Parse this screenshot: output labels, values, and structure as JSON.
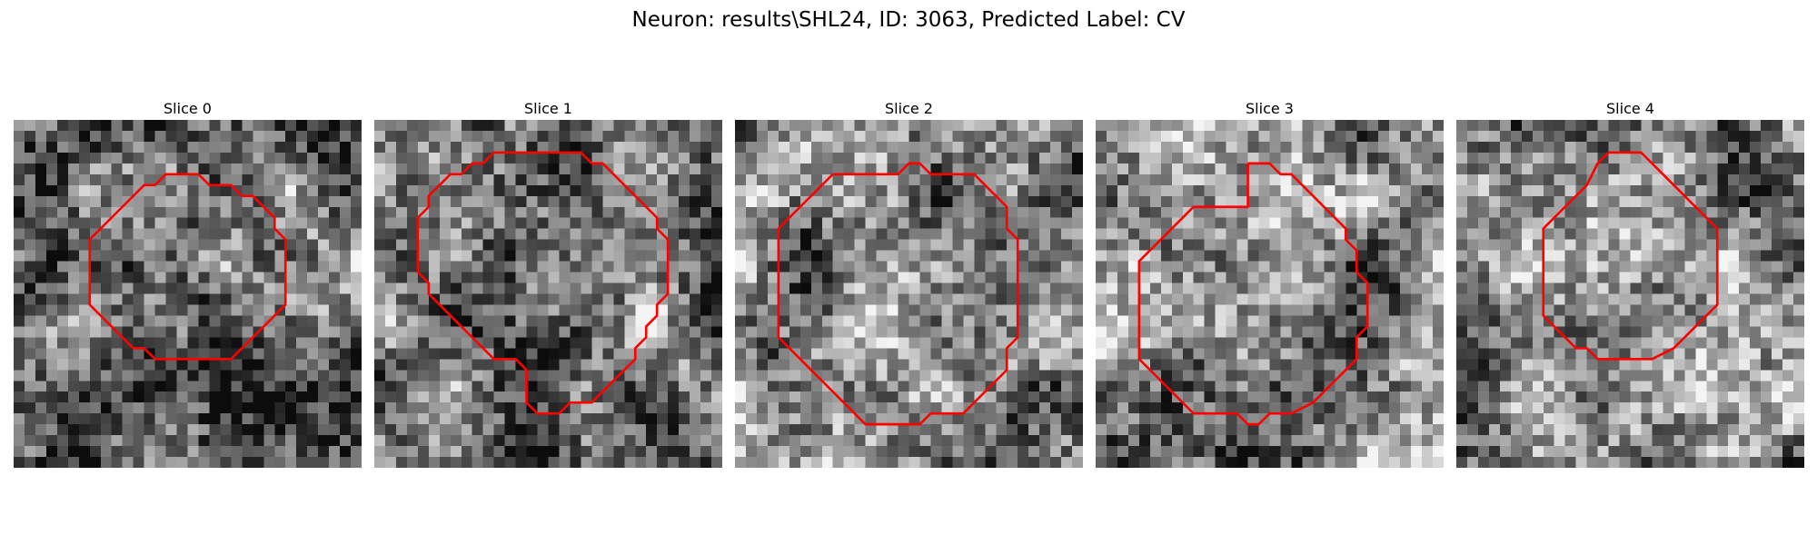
{
  "figure": {
    "title": "Neuron: results\\SHL24, ID: 3063, Predicted Label: CV"
  },
  "panels": [
    {
      "title": "Slice 0",
      "roi_color": "#ff0000",
      "roi_outline_grid": [
        [
          17,
          5
        ],
        [
          18,
          6
        ],
        [
          20,
          6
        ],
        [
          21,
          7
        ],
        [
          22,
          7
        ],
        [
          23,
          8
        ],
        [
          24,
          9
        ],
        [
          24,
          10
        ],
        [
          25,
          11
        ],
        [
          25,
          17
        ],
        [
          24,
          18
        ],
        [
          23,
          19
        ],
        [
          22,
          20
        ],
        [
          21,
          21
        ],
        [
          20,
          22
        ],
        [
          19,
          22
        ],
        [
          13,
          22
        ],
        [
          12,
          21
        ],
        [
          11,
          21
        ],
        [
          10,
          20
        ],
        [
          9,
          19
        ],
        [
          8,
          18
        ],
        [
          7,
          17
        ],
        [
          7,
          11
        ],
        [
          8,
          10
        ],
        [
          9,
          9
        ],
        [
          10,
          8
        ],
        [
          11,
          7
        ],
        [
          12,
          6
        ],
        [
          13,
          6
        ],
        [
          14,
          5
        ],
        [
          16,
          5
        ]
      ]
    },
    {
      "title": "Slice 1",
      "roi_color": "#ff0000",
      "roi_outline_grid": [
        [
          12,
          3
        ],
        [
          19,
          3
        ],
        [
          20,
          4
        ],
        [
          21,
          4
        ],
        [
          22,
          5
        ],
        [
          23,
          6
        ],
        [
          24,
          7
        ],
        [
          25,
          8
        ],
        [
          26,
          9
        ],
        [
          26,
          10
        ],
        [
          27,
          11
        ],
        [
          27,
          16
        ],
        [
          26,
          17
        ],
        [
          26,
          18
        ],
        [
          25,
          19
        ],
        [
          25,
          20
        ],
        [
          24,
          21
        ],
        [
          24,
          22
        ],
        [
          23,
          23
        ],
        [
          22,
          24
        ],
        [
          21,
          25
        ],
        [
          20,
          26
        ],
        [
          18,
          26
        ],
        [
          17,
          27
        ],
        [
          15,
          27
        ],
        [
          14,
          26
        ],
        [
          14,
          23
        ],
        [
          13,
          22
        ],
        [
          11,
          22
        ],
        [
          10,
          21
        ],
        [
          9,
          20
        ],
        [
          8,
          19
        ],
        [
          7,
          18
        ],
        [
          6,
          17
        ],
        [
          5,
          16
        ],
        [
          5,
          15
        ],
        [
          4,
          14
        ],
        [
          4,
          9
        ],
        [
          5,
          8
        ],
        [
          5,
          7
        ],
        [
          6,
          6
        ],
        [
          7,
          5
        ],
        [
          8,
          5
        ],
        [
          9,
          4
        ],
        [
          10,
          4
        ],
        [
          11,
          3
        ]
      ]
    },
    {
      "title": "Slice 2",
      "roi_color": "#ff0000",
      "roi_outline_grid": [
        [
          9,
          5
        ],
        [
          15,
          5
        ],
        [
          16,
          4
        ],
        [
          17,
          4
        ],
        [
          18,
          5
        ],
        [
          22,
          5
        ],
        [
          23,
          6
        ],
        [
          24,
          7
        ],
        [
          25,
          8
        ],
        [
          25,
          10
        ],
        [
          26,
          11
        ],
        [
          26,
          20
        ],
        [
          25,
          21
        ],
        [
          25,
          23
        ],
        [
          24,
          24
        ],
        [
          23,
          25
        ],
        [
          22,
          26
        ],
        [
          21,
          27
        ],
        [
          18,
          27
        ],
        [
          17,
          28
        ],
        [
          12,
          28
        ],
        [
          11,
          27
        ],
        [
          10,
          26
        ],
        [
          9,
          25
        ],
        [
          8,
          24
        ],
        [
          7,
          23
        ],
        [
          6,
          22
        ],
        [
          5,
          21
        ],
        [
          4,
          20
        ],
        [
          4,
          10
        ],
        [
          5,
          9
        ],
        [
          6,
          8
        ],
        [
          7,
          7
        ],
        [
          8,
          6
        ]
      ]
    },
    {
      "title": "Slice 3",
      "roi_color": "#ff0000",
      "roi_outline_grid": [
        [
          14,
          4
        ],
        [
          16,
          4
        ],
        [
          17,
          5
        ],
        [
          18,
          5
        ],
        [
          19,
          6
        ],
        [
          20,
          7
        ],
        [
          21,
          8
        ],
        [
          22,
          9
        ],
        [
          23,
          10
        ],
        [
          23,
          11
        ],
        [
          24,
          12
        ],
        [
          24,
          14
        ],
        [
          25,
          15
        ],
        [
          25,
          19
        ],
        [
          24,
          20
        ],
        [
          24,
          22
        ],
        [
          23,
          23
        ],
        [
          22,
          24
        ],
        [
          21,
          25
        ],
        [
          20,
          26
        ],
        [
          18,
          27
        ],
        [
          16,
          27
        ],
        [
          15,
          28
        ],
        [
          14,
          28
        ],
        [
          13,
          27
        ],
        [
          9,
          27
        ],
        [
          8,
          26
        ],
        [
          7,
          25
        ],
        [
          6,
          24
        ],
        [
          5,
          23
        ],
        [
          4,
          22
        ],
        [
          4,
          13
        ],
        [
          5,
          12
        ],
        [
          6,
          11
        ],
        [
          7,
          10
        ],
        [
          8,
          9
        ],
        [
          9,
          8
        ],
        [
          14,
          8
        ]
      ]
    },
    {
      "title": "Slice 4",
      "roi_color": "#ff0000",
      "roi_outline_grid": [
        [
          14,
          3
        ],
        [
          17,
          3
        ],
        [
          18,
          4
        ],
        [
          19,
          5
        ],
        [
          20,
          6
        ],
        [
          21,
          7
        ],
        [
          22,
          8
        ],
        [
          23,
          9
        ],
        [
          24,
          10
        ],
        [
          24,
          17
        ],
        [
          23,
          18
        ],
        [
          22,
          19
        ],
        [
          21,
          20
        ],
        [
          20,
          21
        ],
        [
          18,
          22
        ],
        [
          13,
          22
        ],
        [
          12,
          21
        ],
        [
          11,
          21
        ],
        [
          10,
          20
        ],
        [
          9,
          19
        ],
        [
          8,
          18
        ],
        [
          8,
          10
        ],
        [
          9,
          9
        ],
        [
          10,
          8
        ],
        [
          11,
          7
        ],
        [
          12,
          6
        ],
        [
          13,
          4
        ]
      ]
    }
  ]
}
